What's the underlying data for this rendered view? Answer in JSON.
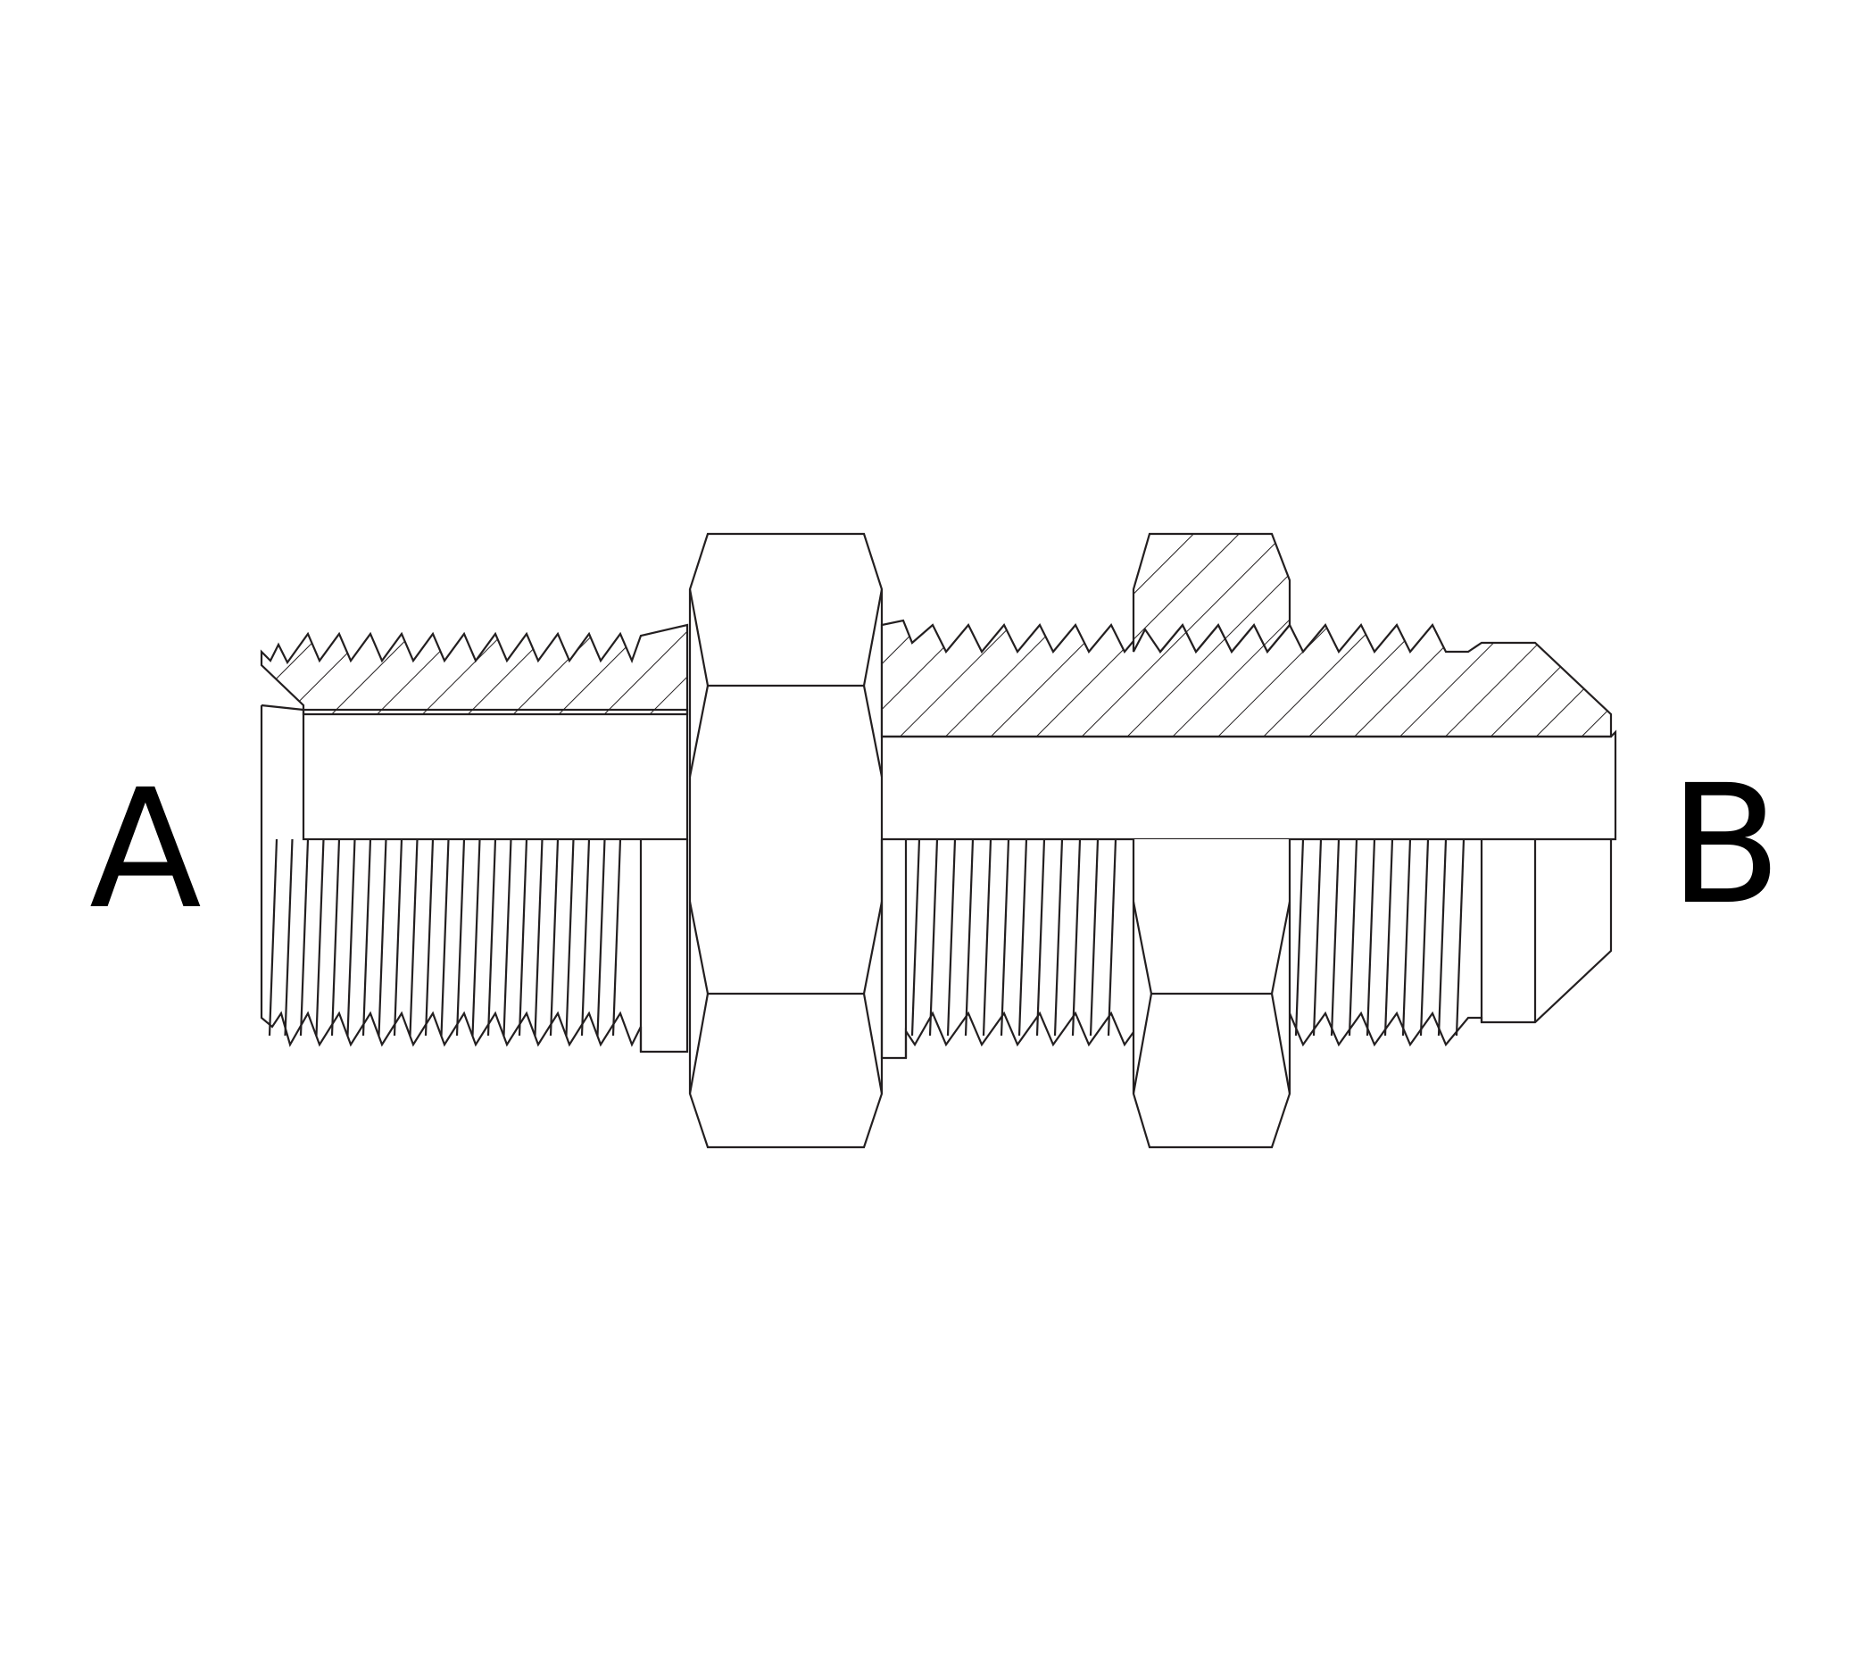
{
  "labels": {
    "end_a": "A",
    "end_b": "B"
  },
  "colors": {
    "line": "#231f20",
    "text": "#000000",
    "background": "#ffffff"
  }
}
